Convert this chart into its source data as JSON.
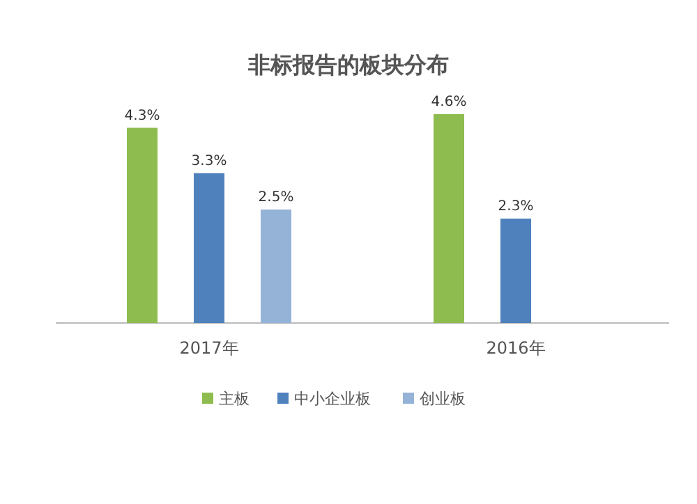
{
  "chart_data": {
    "type": "bar",
    "title": "非标报告的板块分布",
    "categories": [
      "2017年",
      "2016年"
    ],
    "series": [
      {
        "name": "主板",
        "color": "#8fbc4f",
        "values": [
          4.3,
          4.6
        ],
        "value_labels": [
          "4.3%",
          "4.6%"
        ]
      },
      {
        "name": "中小企业板",
        "color": "#4f81bd",
        "values": [
          3.3,
          2.3
        ],
        "value_labels": [
          "3.3%",
          "2.3%"
        ]
      },
      {
        "name": "创业板",
        "color": "#95b3d7",
        "values": [
          2.5,
          null
        ],
        "value_labels": [
          "2.5%",
          null
        ]
      }
    ],
    "legend": "bottom",
    "grid": false
  }
}
